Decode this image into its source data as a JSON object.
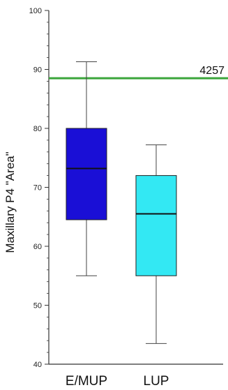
{
  "chart_data": {
    "type": "box",
    "ylabel": "Maxillary P4 \"Area\"",
    "ylim": [
      40,
      100
    ],
    "yticks": [
      40,
      50,
      60,
      70,
      80,
      90,
      100
    ],
    "categories": [
      "E/MUP",
      "LUP"
    ],
    "boxes": [
      {
        "category": "E/MUP",
        "whisker_low": 55,
        "q1": 64.5,
        "median": 73.2,
        "q3": 80,
        "whisker_high": 91.3,
        "color": "#1a0fd6"
      },
      {
        "category": "LUP",
        "whisker_low": 43.5,
        "q1": 55,
        "median": 65.5,
        "q3": 72,
        "whisker_high": 77.2,
        "color": "#33e8f3"
      }
    ],
    "reference_line": {
      "value": 88.5,
      "label": "4257",
      "color": "#3aa53a"
    },
    "grid": false
  }
}
